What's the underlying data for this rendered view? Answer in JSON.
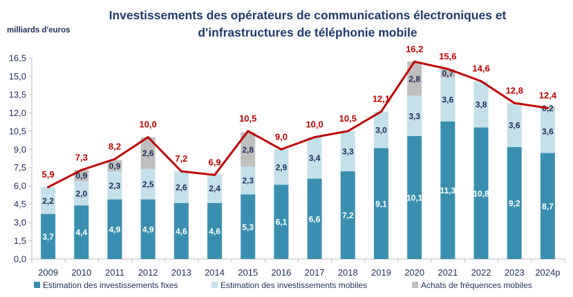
{
  "chart_data": {
    "type": "bar",
    "stacked": true,
    "title_lines": [
      "Investissements des opérateurs de communications électroniques et",
      "d'infrastructures de téléphonie mobile"
    ],
    "ylabel": "milliards d'euros",
    "xlabel": "",
    "ylim": [
      0,
      16.5
    ],
    "yticks": [
      "0,0",
      "1,5",
      "3,0",
      "4,5",
      "6,0",
      "7,5",
      "9,0",
      "10,5",
      "12,0",
      "13,5",
      "15,0",
      "16,5"
    ],
    "grid": false,
    "legend_position": "bottom",
    "categories": [
      "2009",
      "2010",
      "2011",
      "2012",
      "2013",
      "2014",
      "2015",
      "2016",
      "2017",
      "2018",
      "2019",
      "2020",
      "2021",
      "2022",
      "2023",
      "2024p"
    ],
    "series": [
      {
        "name": "Estimation des investissements fixes",
        "color": "#3a8fb0",
        "label_color": "#ffffff",
        "values": [
          3.7,
          4.4,
          4.9,
          4.9,
          4.6,
          4.6,
          5.3,
          6.1,
          6.6,
          7.2,
          9.1,
          10.1,
          11.3,
          10.8,
          9.2,
          8.7
        ]
      },
      {
        "name": "Estimation des investissements mobiles",
        "color": "#c4e1eb",
        "label_color": "#1f2d5a",
        "values": [
          2.2,
          2.0,
          2.3,
          2.5,
          2.6,
          2.4,
          2.3,
          2.9,
          3.4,
          3.3,
          3.0,
          3.3,
          3.6,
          3.8,
          3.6,
          3.6
        ]
      },
      {
        "name": "Achats de fréquences mobiles",
        "color": "#bfbfbf",
        "label_color": "#1f2d5a",
        "values": [
          null,
          0.9,
          0.9,
          2.6,
          null,
          null,
          2.8,
          null,
          null,
          null,
          null,
          2.8,
          0.7,
          null,
          null,
          0.2
        ]
      }
    ],
    "total_line": {
      "type": "line",
      "color": "#c00000",
      "values": [
        5.9,
        7.3,
        8.2,
        10.0,
        7.2,
        6.9,
        10.5,
        9.0,
        10.0,
        10.5,
        12.1,
        16.2,
        15.6,
        14.6,
        12.8,
        12.4
      ]
    }
  }
}
